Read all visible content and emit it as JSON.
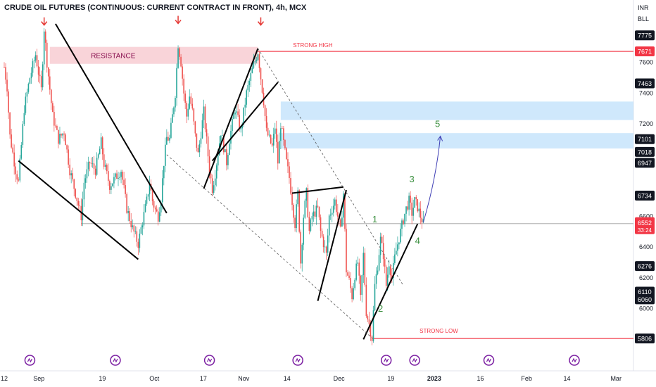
{
  "title": "CRUDE OIL FUTURES (CONTINUOUS: CURRENT CONTRACT IN FRONT), 4h, MCX",
  "currency": "INR",
  "unit": "BLL",
  "chart_data": {
    "type": "candlestick",
    "ylim": [
      5780,
      7900
    ],
    "price_ticks": [
      6000,
      6200,
      6400,
      6600,
      7200,
      7400,
      7600
    ],
    "x_labels": [
      {
        "label": "12",
        "x": 0
      },
      {
        "label": "Sep",
        "x": 12
      },
      {
        "label": "19",
        "x": 34
      },
      {
        "label": "Oct",
        "x": 52
      },
      {
        "label": "17",
        "x": 69
      },
      {
        "label": "Nov",
        "x": 83
      },
      {
        "label": "14",
        "x": 98
      },
      {
        "label": "Dec",
        "x": 116
      },
      {
        "label": "19",
        "x": 134
      },
      {
        "label": "2023",
        "x": 149
      },
      {
        "label": "16",
        "x": 165
      },
      {
        "label": "Feb",
        "x": 181
      },
      {
        "label": "14",
        "x": 195
      },
      {
        "label": "Mar",
        "x": 212
      }
    ],
    "path_points": [
      [
        0,
        7570
      ],
      [
        1,
        7440
      ],
      [
        2,
        7120
      ],
      [
        4,
        6900
      ],
      [
        5,
        6820
      ],
      [
        7,
        7300
      ],
      [
        9,
        7500
      ],
      [
        11,
        7650
      ],
      [
        13,
        7420
      ],
      [
        14,
        7820
      ],
      [
        15,
        7600
      ],
      [
        17,
        7250
      ],
      [
        19,
        7100
      ],
      [
        21,
        7150
      ],
      [
        23,
        6900
      ],
      [
        25,
        6750
      ],
      [
        27,
        6600
      ],
      [
        28,
        6820
      ],
      [
        30,
        6950
      ],
      [
        32,
        6900
      ],
      [
        34,
        7080
      ],
      [
        35,
        6940
      ],
      [
        37,
        6800
      ],
      [
        39,
        6850
      ],
      [
        41,
        6900
      ],
      [
        43,
        6650
      ],
      [
        45,
        6520
      ],
      [
        47,
        6420
      ],
      [
        48,
        6520
      ],
      [
        50,
        6700
      ],
      [
        51,
        6820
      ],
      [
        52,
        6700
      ],
      [
        53,
        6640
      ],
      [
        54,
        6600
      ],
      [
        55,
        6720
      ],
      [
        56,
        6950
      ],
      [
        57,
        7110
      ],
      [
        58,
        7100
      ],
      [
        59,
        7250
      ],
      [
        60,
        7400
      ],
      [
        61,
        7720
      ],
      [
        62,
        7600
      ],
      [
        63,
        7400
      ],
      [
        64,
        7250
      ],
      [
        65,
        7380
      ],
      [
        66,
        7280
      ],
      [
        67,
        7120
      ],
      [
        68,
        7000
      ],
      [
        70,
        7280
      ],
      [
        72,
        6900
      ],
      [
        73,
        6780
      ],
      [
        74,
        6880
      ],
      [
        76,
        7150
      ],
      [
        78,
        6950
      ],
      [
        79,
        7100
      ],
      [
        81,
        7300
      ],
      [
        83,
        7150
      ],
      [
        85,
        7400
      ],
      [
        87,
        7550
      ],
      [
        89,
        7670
      ],
      [
        90,
        7500
      ],
      [
        91,
        7350
      ],
      [
        92,
        7150
      ],
      [
        94,
        7050
      ],
      [
        95,
        7180
      ],
      [
        96,
        6950
      ],
      [
        97,
        7200
      ],
      [
        99,
        6950
      ],
      [
        100,
        6850
      ],
      [
        101,
        6700
      ],
      [
        102,
        6550
      ],
      [
        103,
        6750
      ],
      [
        104,
        6300
      ],
      [
        105,
        6600
      ],
      [
        106,
        6750
      ],
      [
        107,
        6500
      ],
      [
        108,
        6600
      ],
      [
        110,
        6650
      ],
      [
        111,
        6500
      ],
      [
        113,
        6350
      ],
      [
        114,
        6600
      ],
      [
        116,
        6700
      ],
      [
        118,
        6500
      ],
      [
        119,
        6750
      ],
      [
        120,
        6250
      ],
      [
        121,
        6180
      ],
      [
        122,
        6080
      ],
      [
        123,
        6220
      ],
      [
        124,
        6300
      ],
      [
        125,
        6060
      ],
      [
        126,
        6350
      ],
      [
        127,
        5980
      ],
      [
        128,
        5900
      ],
      [
        129,
        5806
      ],
      [
        130,
        6150
      ],
      [
        131,
        6280
      ],
      [
        132,
        6450
      ],
      [
        133,
        6350
      ],
      [
        134,
        6150
      ],
      [
        135,
        6300
      ],
      [
        136,
        6200
      ],
      [
        137,
        6330
      ],
      [
        138,
        6420
      ],
      [
        139,
        6500
      ],
      [
        140,
        6580
      ],
      [
        141,
        6650
      ],
      [
        142,
        6700
      ],
      [
        143,
        6620
      ],
      [
        144,
        6700
      ],
      [
        145,
        6660
      ],
      [
        146,
        6600
      ],
      [
        147,
        6552
      ]
    ],
    "key_levels": [
      {
        "value": 7775,
        "dark": true
      },
      {
        "value": 7671,
        "dark": false,
        "red": true
      },
      {
        "value": 7463,
        "dark": true
      },
      {
        "value": 7101,
        "dark": true
      },
      {
        "value": 7018,
        "dark": true
      },
      {
        "value": 6947,
        "dark": true
      },
      {
        "value": 6734,
        "dark": true
      },
      {
        "value": 6276,
        "dark": true
      },
      {
        "value": 6110,
        "dark": true
      },
      {
        "value": 6060,
        "dark": true
      },
      {
        "value": 5806,
        "dark": true
      }
    ],
    "current": {
      "value": 6552,
      "label": "6552",
      "countdown": "33:24"
    },
    "strong_high": {
      "value": 7671,
      "label": "STRONG HIGH",
      "from_x": 89
    },
    "strong_low": {
      "value": 5806,
      "label": "STRONG LOW",
      "from_x": 129
    },
    "horizontal_line": {
      "value": 6552,
      "from_x": 27
    },
    "resistance_zone": {
      "label": "RESISTANCE",
      "y_top": 7700,
      "y_bottom": 7590,
      "x_from": 16,
      "x_to": 89
    },
    "supply_zones": [
      {
        "y_top": 7345,
        "y_bottom": 7225,
        "x_from": 97,
        "x_to": 225
      },
      {
        "y_top": 7140,
        "y_bottom": 7040,
        "x_from": 97,
        "x_to": 225
      }
    ],
    "trend_lines": [
      {
        "x1": 5,
        "y1": 6960,
        "x2": 47,
        "y2": 6320
      },
      {
        "x1": 18,
        "y1": 7850,
        "x2": 57,
        "y2": 6620
      },
      {
        "x1": 70,
        "y1": 6780,
        "x2": 89,
        "y2": 7690
      },
      {
        "x1": 73,
        "y1": 6960,
        "x2": 96,
        "y2": 7470
      },
      {
        "x1": 101,
        "y1": 6750,
        "x2": 119,
        "y2": 6790
      },
      {
        "x1": 110,
        "y1": 6050,
        "x2": 120,
        "y2": 6770
      },
      {
        "x1": 126,
        "y1": 5800,
        "x2": 145,
        "y2": 6550
      }
    ],
    "dashed_lines": [
      {
        "x1": 89,
        "y1": 7690,
        "x2": 140,
        "y2": 6150
      },
      {
        "x1": 57,
        "y1": 7000,
        "x2": 129,
        "y2": 5810
      }
    ],
    "projection": {
      "x1": 147,
      "y1": 6560,
      "x2": 153,
      "y2": 7120
    },
    "wave_labels": [
      {
        "label": "1",
        "x": 130,
        "y": 6560,
        "color": "#388e3c"
      },
      {
        "label": "2",
        "x": 132,
        "y": 5980,
        "color": "#388e3c"
      },
      {
        "label": "3",
        "x": 143,
        "y": 6820,
        "color": "#388e3c"
      },
      {
        "label": "4",
        "x": 145,
        "y": 6420,
        "color": "#388e3c"
      },
      {
        "label": "5",
        "x": 152,
        "y": 7180,
        "color": "#388e3c"
      }
    ],
    "down_arrows": [
      {
        "x": 14,
        "y": 7860
      },
      {
        "x": 61,
        "y": 7870
      },
      {
        "x": 90,
        "y": 7860
      }
    ],
    "event_markers_x": [
      9,
      39,
      72,
      103,
      134,
      144,
      170,
      200
    ]
  }
}
